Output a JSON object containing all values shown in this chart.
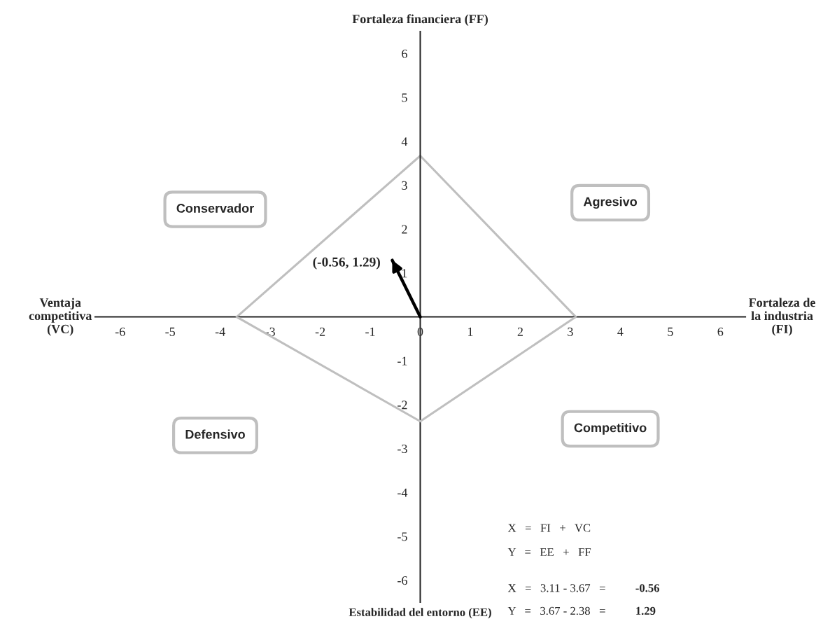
{
  "chart_data": {
    "type": "line",
    "xlabel": "Fortaleza de\nla industria\n(FI)",
    "ylabel": "Fortaleza financiera (FF)",
    "xlim": [
      -6.5,
      6.5
    ],
    "ylim": [
      -6.5,
      6.5
    ],
    "xticks": [
      -6,
      -5,
      -4,
      -3,
      -2,
      -1,
      0,
      1,
      2,
      3,
      4,
      5,
      6
    ],
    "yticks": [
      -6,
      -5,
      -4,
      -3,
      -2,
      -1,
      1,
      2,
      3,
      4,
      5,
      6
    ],
    "grid": false,
    "series": [
      {
        "color": "#bfbfbf",
        "x": [
          -3.67,
          0,
          3.11
        ],
        "values": [
          0,
          3.67,
          0
        ]
      },
      {
        "color": "#bfbfbf",
        "x": [
          -3.67,
          0,
          3.11
        ],
        "values": [
          0,
          -2.38,
          0
        ]
      },
      {
        "color": "#000000",
        "x": [
          0,
          -0.56
        ],
        "values": [
          0,
          1.29
        ]
      }
    ],
    "annotations": [
      "Ventaja\ncompetitiva\n(VC)",
      "Estabilidad del entorno (EE)",
      "Conservador",
      "Agresivo",
      "Defensivo",
      "Competitivo",
      "X   =   FI   +   VC",
      "Y   =   EE   +   FF",
      "X   =   3.11 - 3.67   =",
      "Y   =   3.67 - 2.38   =",
      "-0.56",
      "1.29",
      {
        "text": "(-0.56, 1.29)",
        "x": -0.56,
        "y": 1.29
      }
    ]
  }
}
